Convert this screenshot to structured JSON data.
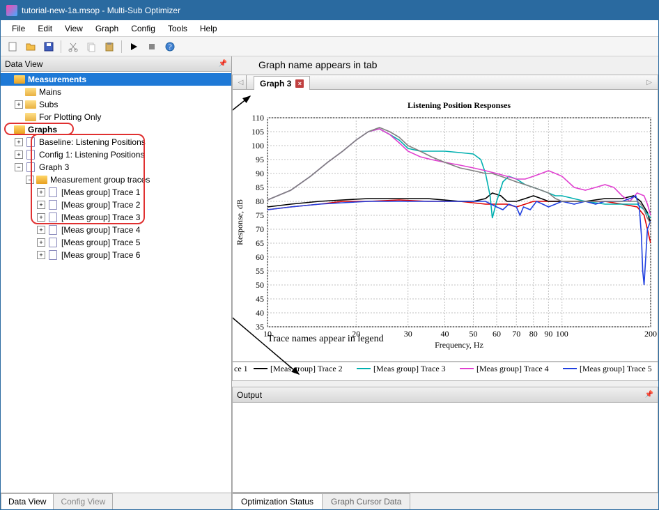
{
  "window": {
    "title": "tutorial-new-1a.msop - Multi-Sub Optimizer"
  },
  "menu": [
    "File",
    "Edit",
    "View",
    "Graph",
    "Config",
    "Tools",
    "Help"
  ],
  "left_panel": {
    "title": "Data View",
    "tabs": [
      "Data View",
      "Config View"
    ],
    "tree": {
      "measurements": {
        "label": "Measurements",
        "children": [
          "Mains",
          "Subs",
          "For Plotting Only"
        ]
      },
      "graphs": {
        "label": "Graphs",
        "children": [
          "Baseline: Listening Positions",
          "Config 1: Listening Positions",
          "Graph 3"
        ],
        "graph3_group": {
          "label": "Measurement group traces",
          "traces": [
            "[Meas group] Trace 1",
            "[Meas group] Trace 2",
            "[Meas group] Trace 3",
            "[Meas group] Trace 4",
            "[Meas group] Trace 5",
            "[Meas group] Trace 6"
          ]
        }
      }
    }
  },
  "annotations": {
    "top": "Graph name appears in tab",
    "mid": "Trace names appear in legend"
  },
  "graph_tab": {
    "label": "Graph 3"
  },
  "chart": {
    "title": "Listening Position Responses",
    "xlabel": "Frequency, Hz",
    "ylabel": "Response, dB",
    "title_fontsize": 22,
    "label_fontsize": 14,
    "xlim": [
      10,
      200
    ],
    "xscale": "log",
    "ylim": [
      35,
      110
    ],
    "ytick_step": 5,
    "xticks": [
      10,
      20,
      30,
      40,
      50,
      60,
      70,
      80,
      90,
      100,
      200
    ],
    "background": "#ffffff",
    "grid_color": "#c0c0c0",
    "series": [
      {
        "name": "[Meas group] Trace 1",
        "color": "#e00000",
        "data": [
          [
            10,
            77
          ],
          [
            12,
            78
          ],
          [
            15,
            79
          ],
          [
            18,
            80
          ],
          [
            22,
            80
          ],
          [
            28,
            80.5
          ],
          [
            35,
            80
          ],
          [
            45,
            80
          ],
          [
            55,
            79
          ],
          [
            60,
            79
          ],
          [
            65,
            79
          ],
          [
            70,
            78
          ],
          [
            75,
            79
          ],
          [
            80,
            80
          ],
          [
            85,
            80
          ],
          [
            90,
            80
          ],
          [
            100,
            80
          ],
          [
            120,
            80
          ],
          [
            140,
            80
          ],
          [
            160,
            79
          ],
          [
            180,
            78
          ],
          [
            190,
            75
          ],
          [
            195,
            70
          ],
          [
            200,
            65
          ]
        ]
      },
      {
        "name": "[Meas group] Trace 2",
        "color": "#000000",
        "data": [
          [
            10,
            78
          ],
          [
            12,
            79
          ],
          [
            15,
            80
          ],
          [
            18,
            80.5
          ],
          [
            22,
            81
          ],
          [
            28,
            81
          ],
          [
            35,
            81
          ],
          [
            45,
            80
          ],
          [
            50,
            80
          ],
          [
            55,
            81
          ],
          [
            58,
            83
          ],
          [
            62,
            82
          ],
          [
            65,
            80
          ],
          [
            70,
            80
          ],
          [
            75,
            81
          ],
          [
            80,
            82
          ],
          [
            85,
            81
          ],
          [
            90,
            80
          ],
          [
            100,
            80
          ],
          [
            120,
            80
          ],
          [
            140,
            81
          ],
          [
            160,
            81
          ],
          [
            175,
            82
          ],
          [
            185,
            80
          ],
          [
            195,
            76
          ],
          [
            200,
            72
          ]
        ]
      },
      {
        "name": "[Meas group] Trace 3",
        "color": "#00b0b0",
        "data": [
          [
            10,
            80.5
          ],
          [
            12,
            84
          ],
          [
            14,
            89
          ],
          [
            16,
            94
          ],
          [
            18,
            98
          ],
          [
            20,
            102
          ],
          [
            22,
            105
          ],
          [
            24,
            106
          ],
          [
            26,
            104
          ],
          [
            28,
            102
          ],
          [
            30,
            99
          ],
          [
            33,
            98
          ],
          [
            36,
            98
          ],
          [
            40,
            98
          ],
          [
            45,
            97.5
          ],
          [
            50,
            97
          ],
          [
            53,
            95
          ],
          [
            55,
            90
          ],
          [
            57,
            82
          ],
          [
            58,
            74
          ],
          [
            60,
            80
          ],
          [
            63,
            87
          ],
          [
            66,
            89
          ],
          [
            70,
            88
          ],
          [
            75,
            86
          ],
          [
            80,
            85
          ],
          [
            85,
            84
          ],
          [
            90,
            83
          ],
          [
            95,
            82
          ],
          [
            100,
            82
          ],
          [
            120,
            80
          ],
          [
            140,
            79
          ],
          [
            160,
            79
          ],
          [
            180,
            79
          ],
          [
            190,
            77
          ],
          [
            200,
            74
          ]
        ]
      },
      {
        "name": "[Meas group] Trace 4",
        "color": "#e040d0",
        "data": [
          [
            10,
            80.5
          ],
          [
            12,
            84
          ],
          [
            14,
            89
          ],
          [
            16,
            94
          ],
          [
            18,
            98
          ],
          [
            20,
            102
          ],
          [
            22,
            105
          ],
          [
            24,
            106
          ],
          [
            26,
            104
          ],
          [
            28,
            101
          ],
          [
            30,
            98
          ],
          [
            33,
            96
          ],
          [
            36,
            95
          ],
          [
            40,
            94
          ],
          [
            45,
            93
          ],
          [
            50,
            92
          ],
          [
            55,
            91
          ],
          [
            60,
            90
          ],
          [
            65,
            89
          ],
          [
            70,
            88
          ],
          [
            75,
            88
          ],
          [
            80,
            89
          ],
          [
            85,
            90
          ],
          [
            90,
            91
          ],
          [
            95,
            90
          ],
          [
            100,
            89
          ],
          [
            110,
            85
          ],
          [
            120,
            84
          ],
          [
            130,
            85
          ],
          [
            140,
            86
          ],
          [
            150,
            85
          ],
          [
            160,
            82
          ],
          [
            170,
            80
          ],
          [
            180,
            83
          ],
          [
            190,
            82
          ],
          [
            195,
            79
          ],
          [
            200,
            75
          ]
        ]
      },
      {
        "name": "[Meas group] Trace 5",
        "color": "#2040e0",
        "data": [
          [
            10,
            77
          ],
          [
            12,
            78
          ],
          [
            15,
            79
          ],
          [
            18,
            79.5
          ],
          [
            22,
            80
          ],
          [
            28,
            80
          ],
          [
            35,
            80
          ],
          [
            45,
            80
          ],
          [
            55,
            80
          ],
          [
            60,
            78
          ],
          [
            63,
            77
          ],
          [
            66,
            79
          ],
          [
            70,
            78
          ],
          [
            72,
            75
          ],
          [
            74,
            78
          ],
          [
            78,
            77
          ],
          [
            82,
            80
          ],
          [
            86,
            79
          ],
          [
            90,
            78
          ],
          [
            95,
            79
          ],
          [
            100,
            80
          ],
          [
            110,
            79
          ],
          [
            120,
            80
          ],
          [
            130,
            79
          ],
          [
            140,
            80
          ],
          [
            150,
            80
          ],
          [
            160,
            80
          ],
          [
            170,
            81
          ],
          [
            178,
            82
          ],
          [
            183,
            78
          ],
          [
            186,
            68
          ],
          [
            188,
            55
          ],
          [
            190,
            50
          ],
          [
            192,
            58
          ],
          [
            195,
            70
          ],
          [
            200,
            73
          ]
        ]
      },
      {
        "name": "[Meas group] Trace 6",
        "color": "#808080",
        "data": [
          [
            10,
            80.5
          ],
          [
            12,
            84
          ],
          [
            14,
            89
          ],
          [
            16,
            94
          ],
          [
            18,
            98
          ],
          [
            20,
            102
          ],
          [
            22,
            105
          ],
          [
            24,
            106.5
          ],
          [
            26,
            105
          ],
          [
            28,
            103
          ],
          [
            30,
            100
          ],
          [
            33,
            98
          ],
          [
            36,
            96
          ],
          [
            40,
            94
          ],
          [
            45,
            92
          ],
          [
            50,
            91
          ],
          [
            55,
            90
          ],
          [
            58,
            90
          ],
          [
            62,
            89
          ],
          [
            66,
            88
          ],
          [
            70,
            87
          ],
          [
            75,
            86
          ],
          [
            80,
            85
          ],
          [
            85,
            84
          ],
          [
            90,
            83
          ],
          [
            95,
            81
          ],
          [
            100,
            80
          ],
          [
            110,
            80
          ],
          [
            120,
            80
          ],
          [
            130,
            80
          ],
          [
            140,
            80
          ],
          [
            150,
            80
          ],
          [
            160,
            80
          ],
          [
            170,
            80
          ],
          [
            180,
            80
          ],
          [
            185,
            79
          ],
          [
            190,
            77
          ],
          [
            195,
            74
          ],
          [
            200,
            72
          ]
        ]
      }
    ],
    "legend": [
      "ce 1",
      "[Meas group] Trace 2",
      "[Meas group] Trace 3",
      "[Meas group] Trace 4",
      "[Meas group] Trace 5",
      "["
    ],
    "legend_colors": [
      "#e00000",
      "#000000",
      "#00b0b0",
      "#e040d0",
      "#2040e0",
      "#808080"
    ]
  },
  "output_panel": {
    "title": "Output"
  },
  "right_tabs": [
    "Optimization Status",
    "Graph Cursor Data"
  ]
}
